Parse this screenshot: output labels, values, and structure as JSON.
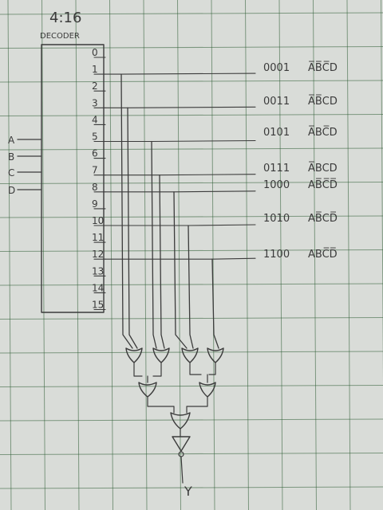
{
  "decoder": {
    "title": "4:16",
    "subtitle": "DECODER",
    "inputs": [
      "A",
      "B",
      "C",
      "D"
    ],
    "outputs": [
      "0",
      "1",
      "2",
      "3",
      "4",
      "5",
      "6",
      "7",
      "8",
      "9",
      "10",
      "11",
      "12",
      "13",
      "14",
      "15"
    ]
  },
  "minterms": [
    {
      "line": "1",
      "code": "0001",
      "expr": "A̅B̅C̅D"
    },
    {
      "line": "3",
      "code": "0011",
      "expr": "A̅B̅CD"
    },
    {
      "line": "5",
      "code": "0101",
      "expr": "A̅BC̅D"
    },
    {
      "line": "7",
      "code": "0111",
      "expr": "A̅BCD"
    },
    {
      "line": "8",
      "code": "1000",
      "expr": "AB̅C̅D̅"
    },
    {
      "line": "10",
      "code": "1010",
      "expr": "AB̅CD̅"
    },
    {
      "line": "12",
      "code": "1100",
      "expr": "ABC̅D̅"
    }
  ],
  "output_label": "Y",
  "colors": {
    "paper": "#d9dcd8",
    "grid": "#2f5e36",
    "pencil": "#3b3b3b"
  }
}
